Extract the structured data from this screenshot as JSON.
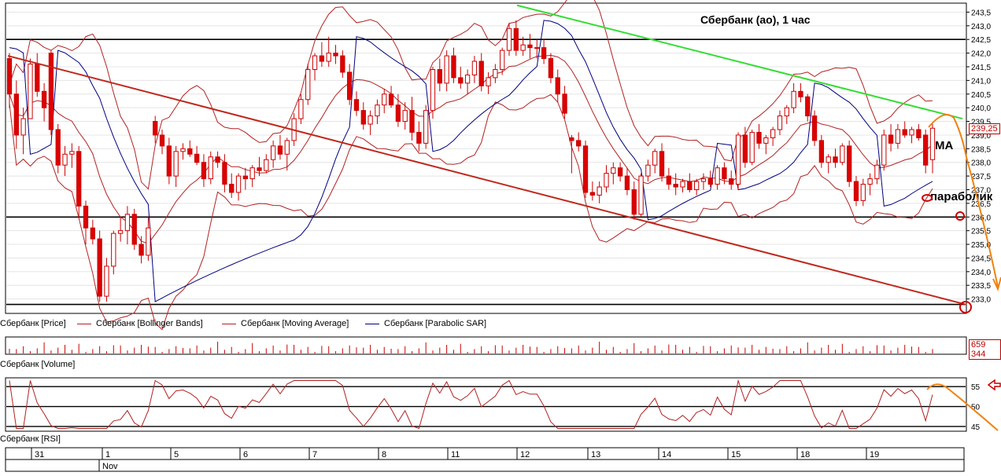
{
  "chart_data": {
    "type": "candlestick",
    "title": "Сбербанк (ао),  1 час",
    "price_axis": {
      "ylim": [
        232.5,
        243.8
      ],
      "ticks": [
        "243,5",
        "243,0",
        "242,5",
        "242,0",
        "241,5",
        "241,0",
        "240,5",
        "240,0",
        "239,5",
        "239,0",
        "238,5",
        "238,0",
        "237,5",
        "237,0",
        "236,5",
        "236,0",
        "235,5",
        "235,0",
        "234,5",
        "234,0",
        "233,5",
        "233,0"
      ],
      "tick_values": [
        243.5,
        243.0,
        242.5,
        242.0,
        241.5,
        241.0,
        240.5,
        240.0,
        239.5,
        239.0,
        238.5,
        238.0,
        237.5,
        237.0,
        236.5,
        236.0,
        235.5,
        235.0,
        234.5,
        234.0,
        233.5,
        233.0
      ],
      "last_price_label": "239,25"
    },
    "horizontal_levels": [
      242.5,
      236.0,
      232.8
    ],
    "annotations": {
      "ma_label": "МА",
      "sar_label": "параболик"
    },
    "legend": [
      {
        "label": "Сбербанк [Price]",
        "color": "#cc0000"
      },
      {
        "label": "Сбербанк [Bollinger Bands]",
        "color": "#b22222"
      },
      {
        "label": "Сбербанк [Moving Average]",
        "color": "#b22222"
      },
      {
        "label": "Сбербанк [Parabolic SAR]",
        "color": "#000080"
      }
    ],
    "volume": {
      "label": "Сбербанк [Volume]",
      "last_value_label": "659 344"
    },
    "rsi": {
      "label": "Сбербанк [RSI]",
      "ticks": [
        "55",
        "50",
        "45"
      ],
      "tick_values": [
        55,
        50,
        45
      ],
      "levels": [
        55,
        50,
        45
      ],
      "ylim": [
        44,
        57
      ]
    },
    "x_axis": {
      "dates": [
        "31",
        "1",
        "5",
        "6",
        "7",
        "8",
        "11",
        "12",
        "13",
        "14",
        "15",
        "18",
        "19"
      ],
      "month_label": "Nov"
    },
    "candles": [
      {
        "o": 241.8,
        "h": 242.0,
        "l": 240.0,
        "c": 240.5
      },
      {
        "o": 240.5,
        "h": 241.0,
        "l": 238.5,
        "c": 239.0
      },
      {
        "o": 239.0,
        "h": 240.0,
        "l": 238.3,
        "c": 239.6
      },
      {
        "o": 239.6,
        "h": 241.8,
        "l": 239.6,
        "c": 241.6
      },
      {
        "o": 241.6,
        "h": 242.0,
        "l": 240.4,
        "c": 240.6
      },
      {
        "o": 240.6,
        "h": 240.9,
        "l": 239.5,
        "c": 240.0
      },
      {
        "o": 242.0,
        "h": 242.1,
        "l": 239.0,
        "c": 239.2
      },
      {
        "o": 239.2,
        "h": 239.4,
        "l": 237.6,
        "c": 237.9
      },
      {
        "o": 237.9,
        "h": 238.6,
        "l": 237.5,
        "c": 238.3
      },
      {
        "o": 238.3,
        "h": 238.7,
        "l": 237.8,
        "c": 238.4
      },
      {
        "o": 238.4,
        "h": 238.6,
        "l": 236.0,
        "c": 236.4
      },
      {
        "o": 236.4,
        "h": 236.6,
        "l": 235.0,
        "c": 235.6
      },
      {
        "o": 235.6,
        "h": 235.9,
        "l": 235.0,
        "c": 235.2
      },
      {
        "o": 235.2,
        "h": 235.5,
        "l": 232.9,
        "c": 233.1
      },
      {
        "o": 233.1,
        "h": 234.5,
        "l": 232.9,
        "c": 234.2
      },
      {
        "o": 234.2,
        "h": 235.5,
        "l": 233.9,
        "c": 235.4
      },
      {
        "o": 235.4,
        "h": 236.0,
        "l": 235.1,
        "c": 235.5
      },
      {
        "o": 235.5,
        "h": 236.4,
        "l": 235.0,
        "c": 236.1
      },
      {
        "o": 236.1,
        "h": 236.3,
        "l": 234.8,
        "c": 235.0
      },
      {
        "o": 235.0,
        "h": 235.3,
        "l": 234.3,
        "c": 234.6
      },
      {
        "o": 234.6,
        "h": 236.0,
        "l": 234.4,
        "c": 235.6
      },
      {
        "o": 239.5,
        "h": 239.7,
        "l": 238.7,
        "c": 239.0
      },
      {
        "o": 239.0,
        "h": 239.2,
        "l": 238.3,
        "c": 238.6
      },
      {
        "o": 238.6,
        "h": 238.9,
        "l": 237.2,
        "c": 237.5
      },
      {
        "o": 237.5,
        "h": 238.6,
        "l": 237.1,
        "c": 238.4
      },
      {
        "o": 238.4,
        "h": 238.7,
        "l": 238.1,
        "c": 238.5
      },
      {
        "o": 238.5,
        "h": 238.8,
        "l": 238.2,
        "c": 238.3
      },
      {
        "o": 238.3,
        "h": 238.6,
        "l": 237.9,
        "c": 238.0
      },
      {
        "o": 238.0,
        "h": 238.3,
        "l": 237.1,
        "c": 237.4
      },
      {
        "o": 237.4,
        "h": 238.4,
        "l": 237.2,
        "c": 238.2
      },
      {
        "o": 238.2,
        "h": 238.4,
        "l": 237.8,
        "c": 238.0
      },
      {
        "o": 238.0,
        "h": 238.3,
        "l": 236.9,
        "c": 237.2
      },
      {
        "o": 237.2,
        "h": 237.6,
        "l": 236.7,
        "c": 236.9
      },
      {
        "o": 236.9,
        "h": 237.6,
        "l": 236.6,
        "c": 237.5
      },
      {
        "o": 237.5,
        "h": 237.8,
        "l": 237.0,
        "c": 237.4
      },
      {
        "o": 237.4,
        "h": 237.9,
        "l": 237.1,
        "c": 237.8
      },
      {
        "o": 237.8,
        "h": 238.2,
        "l": 237.5,
        "c": 237.7
      },
      {
        "o": 237.7,
        "h": 238.3,
        "l": 237.6,
        "c": 238.1
      },
      {
        "o": 238.1,
        "h": 238.8,
        "l": 237.8,
        "c": 238.6
      },
      {
        "o": 238.6,
        "h": 239.0,
        "l": 238.1,
        "c": 238.3
      },
      {
        "o": 238.3,
        "h": 238.9,
        "l": 237.7,
        "c": 238.8
      },
      {
        "o": 238.8,
        "h": 239.8,
        "l": 238.6,
        "c": 239.6
      },
      {
        "o": 239.6,
        "h": 240.5,
        "l": 239.4,
        "c": 240.3
      },
      {
        "o": 240.3,
        "h": 241.6,
        "l": 240.1,
        "c": 241.4
      },
      {
        "o": 241.4,
        "h": 242.0,
        "l": 241.0,
        "c": 241.9
      },
      {
        "o": 241.9,
        "h": 242.4,
        "l": 241.5,
        "c": 241.7
      },
      {
        "o": 241.7,
        "h": 242.6,
        "l": 241.5,
        "c": 242.0
      },
      {
        "o": 242.0,
        "h": 242.3,
        "l": 241.6,
        "c": 241.9
      },
      {
        "o": 241.9,
        "h": 242.1,
        "l": 241.1,
        "c": 241.3
      },
      {
        "o": 241.3,
        "h": 241.6,
        "l": 240.1,
        "c": 240.3
      },
      {
        "o": 240.3,
        "h": 240.6,
        "l": 239.7,
        "c": 239.9
      },
      {
        "o": 239.9,
        "h": 240.2,
        "l": 239.2,
        "c": 239.4
      },
      {
        "o": 239.4,
        "h": 239.9,
        "l": 239.0,
        "c": 239.7
      },
      {
        "o": 239.7,
        "h": 240.3,
        "l": 239.4,
        "c": 240.1
      },
      {
        "o": 240.1,
        "h": 240.7,
        "l": 239.8,
        "c": 240.5
      },
      {
        "o": 240.5,
        "h": 240.8,
        "l": 240.0,
        "c": 240.1
      },
      {
        "o": 240.1,
        "h": 240.5,
        "l": 239.3,
        "c": 239.5
      },
      {
        "o": 239.5,
        "h": 240.2,
        "l": 239.2,
        "c": 239.9
      },
      {
        "o": 239.9,
        "h": 240.4,
        "l": 238.8,
        "c": 239.1
      },
      {
        "o": 239.1,
        "h": 239.5,
        "l": 238.4,
        "c": 238.7
      },
      {
        "o": 238.7,
        "h": 240.1,
        "l": 238.5,
        "c": 239.9
      },
      {
        "o": 239.9,
        "h": 241.5,
        "l": 239.6,
        "c": 241.4
      },
      {
        "o": 241.4,
        "h": 241.8,
        "l": 240.6,
        "c": 240.9
      },
      {
        "o": 240.9,
        "h": 242.1,
        "l": 240.6,
        "c": 241.9
      },
      {
        "o": 241.9,
        "h": 242.2,
        "l": 240.9,
        "c": 241.1
      },
      {
        "o": 241.1,
        "h": 241.5,
        "l": 240.7,
        "c": 240.9
      },
      {
        "o": 240.9,
        "h": 241.4,
        "l": 240.5,
        "c": 241.2
      },
      {
        "o": 241.2,
        "h": 241.9,
        "l": 240.9,
        "c": 241.7
      },
      {
        "o": 241.7,
        "h": 242.0,
        "l": 240.6,
        "c": 240.8
      },
      {
        "o": 240.8,
        "h": 241.3,
        "l": 240.5,
        "c": 241.1
      },
      {
        "o": 241.1,
        "h": 241.6,
        "l": 240.9,
        "c": 241.4
      },
      {
        "o": 241.4,
        "h": 242.2,
        "l": 241.2,
        "c": 242.1
      },
      {
        "o": 242.1,
        "h": 243.1,
        "l": 241.9,
        "c": 242.9
      },
      {
        "o": 242.9,
        "h": 243.2,
        "l": 241.9,
        "c": 242.1
      },
      {
        "o": 242.1,
        "h": 242.6,
        "l": 241.9,
        "c": 242.3
      },
      {
        "o": 242.3,
        "h": 242.7,
        "l": 241.8,
        "c": 242.2
      },
      {
        "o": 242.2,
        "h": 242.5,
        "l": 241.8,
        "c": 242.2
      },
      {
        "o": 242.2,
        "h": 242.5,
        "l": 241.6,
        "c": 241.8
      },
      {
        "o": 241.8,
        "h": 242.0,
        "l": 240.9,
        "c": 241.1
      },
      {
        "o": 241.1,
        "h": 241.4,
        "l": 240.2,
        "c": 240.5
      },
      {
        "o": 240.5,
        "h": 240.8,
        "l": 239.6,
        "c": 239.8
      },
      {
        "o": 238.9,
        "h": 239.0,
        "l": 237.6,
        "c": 238.8
      },
      {
        "o": 238.8,
        "h": 239.1,
        "l": 238.4,
        "c": 238.6
      },
      {
        "o": 238.6,
        "h": 238.8,
        "l": 236.7,
        "c": 236.9
      },
      {
        "o": 236.9,
        "h": 237.3,
        "l": 236.6,
        "c": 236.8
      },
      {
        "o": 236.8,
        "h": 237.3,
        "l": 236.5,
        "c": 237.1
      },
      {
        "o": 237.1,
        "h": 237.9,
        "l": 236.9,
        "c": 237.6
      },
      {
        "o": 237.6,
        "h": 238.0,
        "l": 237.2,
        "c": 237.8
      },
      {
        "o": 237.8,
        "h": 238.0,
        "l": 237.3,
        "c": 237.5
      },
      {
        "o": 237.5,
        "h": 237.8,
        "l": 236.8,
        "c": 237.0
      },
      {
        "o": 237.0,
        "h": 237.3,
        "l": 235.9,
        "c": 236.1
      },
      {
        "o": 236.1,
        "h": 237.6,
        "l": 236.0,
        "c": 237.5
      },
      {
        "o": 237.5,
        "h": 238.1,
        "l": 237.3,
        "c": 237.9
      },
      {
        "o": 237.9,
        "h": 238.5,
        "l": 237.6,
        "c": 238.4
      },
      {
        "o": 238.4,
        "h": 238.7,
        "l": 237.3,
        "c": 237.5
      },
      {
        "o": 237.5,
        "h": 237.8,
        "l": 237.0,
        "c": 237.2
      },
      {
        "o": 237.2,
        "h": 237.6,
        "l": 236.8,
        "c": 237.1
      },
      {
        "o": 237.1,
        "h": 237.4,
        "l": 236.9,
        "c": 237.3
      },
      {
        "o": 237.3,
        "h": 237.6,
        "l": 236.9,
        "c": 237.0
      },
      {
        "o": 237.0,
        "h": 237.4,
        "l": 236.8,
        "c": 237.3
      },
      {
        "o": 237.3,
        "h": 237.6,
        "l": 237.0,
        "c": 237.4
      },
      {
        "o": 237.4,
        "h": 237.7,
        "l": 237.1,
        "c": 237.2
      },
      {
        "o": 237.2,
        "h": 237.9,
        "l": 237.0,
        "c": 237.8
      },
      {
        "o": 237.8,
        "h": 238.0,
        "l": 237.2,
        "c": 237.4
      },
      {
        "o": 237.4,
        "h": 237.7,
        "l": 237.0,
        "c": 237.2
      },
      {
        "o": 237.2,
        "h": 239.1,
        "l": 237.0,
        "c": 239.0
      },
      {
        "o": 239.0,
        "h": 239.3,
        "l": 237.8,
        "c": 238.0
      },
      {
        "o": 238.0,
        "h": 239.2,
        "l": 237.9,
        "c": 239.1
      },
      {
        "o": 239.1,
        "h": 239.4,
        "l": 238.5,
        "c": 238.7
      },
      {
        "o": 238.7,
        "h": 239.0,
        "l": 238.3,
        "c": 238.9
      },
      {
        "o": 238.9,
        "h": 239.3,
        "l": 238.6,
        "c": 239.2
      },
      {
        "o": 239.2,
        "h": 239.9,
        "l": 239.0,
        "c": 239.7
      },
      {
        "o": 239.7,
        "h": 240.1,
        "l": 239.4,
        "c": 240.0
      },
      {
        "o": 240.0,
        "h": 240.9,
        "l": 239.8,
        "c": 240.6
      },
      {
        "o": 240.6,
        "h": 240.9,
        "l": 240.2,
        "c": 240.4
      },
      {
        "o": 240.4,
        "h": 240.5,
        "l": 239.5,
        "c": 239.7
      },
      {
        "o": 239.7,
        "h": 239.9,
        "l": 238.6,
        "c": 238.8
      },
      {
        "o": 238.8,
        "h": 239.0,
        "l": 237.8,
        "c": 238.0
      },
      {
        "o": 238.0,
        "h": 238.3,
        "l": 237.6,
        "c": 238.2
      },
      {
        "o": 238.2,
        "h": 238.5,
        "l": 237.8,
        "c": 238.0
      },
      {
        "o": 238.0,
        "h": 238.7,
        "l": 237.9,
        "c": 238.6
      },
      {
        "o": 238.6,
        "h": 238.8,
        "l": 237.1,
        "c": 237.3
      },
      {
        "o": 237.3,
        "h": 237.5,
        "l": 236.4,
        "c": 236.6
      },
      {
        "o": 236.6,
        "h": 237.4,
        "l": 236.4,
        "c": 237.2
      },
      {
        "o": 237.2,
        "h": 237.6,
        "l": 236.8,
        "c": 237.4
      },
      {
        "o": 237.4,
        "h": 238.1,
        "l": 237.2,
        "c": 237.9
      },
      {
        "o": 237.9,
        "h": 239.2,
        "l": 237.7,
        "c": 239.0
      },
      {
        "o": 239.0,
        "h": 239.4,
        "l": 238.4,
        "c": 238.7
      },
      {
        "o": 238.7,
        "h": 239.4,
        "l": 238.5,
        "c": 239.2
      },
      {
        "o": 239.2,
        "h": 239.5,
        "l": 238.9,
        "c": 239.0
      },
      {
        "o": 239.0,
        "h": 239.3,
        "l": 238.7,
        "c": 239.2
      },
      {
        "o": 239.2,
        "h": 239.4,
        "l": 238.8,
        "c": 238.9
      },
      {
        "o": 239.0,
        "h": 239.2,
        "l": 237.6,
        "c": 237.9
      },
      {
        "o": 238.1,
        "h": 239.4,
        "l": 237.6,
        "c": 239.25
      }
    ]
  }
}
